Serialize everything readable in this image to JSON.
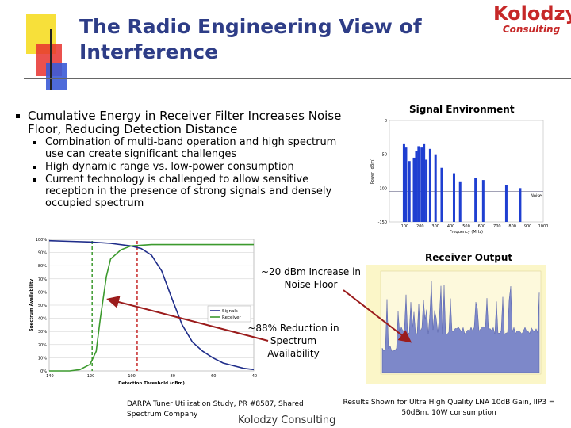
{
  "slide": {
    "title": "The Radio Engineering View of Interference",
    "logo": {
      "main": "Kolodzy",
      "sub": "Consulting"
    },
    "bullet": "Cumulative Energy in Receiver Filter Increases Noise Floor, Reducing Detection Distance",
    "sub_bullets": [
      "Combination of multi-band operation and high spectrum use  can create significant challenges",
      "High dynamic range vs. low-power consumption",
      "Current technology is challenged to allow sensitive reception in the presence of strong signals and densely occupied spectrum"
    ],
    "signal_env_title": "Signal Environment",
    "receiver_output_title": "Receiver Output",
    "annotation_noise": "~20 dBm Increase in Noise Floor",
    "annotation_reduction": "~88% Reduction in Spectrum Availability",
    "citation": "DARPA Tuner Utilization Study, PR #8587, Shared Spectrum Company",
    "footer": "Kolodzy Consulting",
    "results_note": "Results Shown for Ultra High Quality LNA 10dB Gain, IIP3 = 50dBm, 10W consumption"
  },
  "colors": {
    "title": "#2e3d87",
    "logo": "#c62828",
    "arrow": "#9b1c1c",
    "signal_bars": "#1f3fd1",
    "receiver_fill": "#7d88c9",
    "receiver_bg": "#fbf6c8"
  },
  "chart_data": [
    {
      "type": "line",
      "title": "",
      "xlabel": "Detection Threshold (dBm)",
      "ylabel": "Spectrum Availability",
      "x_ticks": [
        "-140",
        "-120",
        "-100",
        "-80",
        "-60",
        "-40"
      ],
      "y_ticks": [
        "0%",
        "10%",
        "20%",
        "30%",
        "40%",
        "50%",
        "60%",
        "70%",
        "80%",
        "90%",
        "100%"
      ],
      "xlim": [
        -140,
        -40
      ],
      "ylim": [
        0,
        100
      ],
      "legend": "right",
      "series": [
        {
          "name": "Signals",
          "color": "#1f2d8a",
          "x": [
            -140,
            -130,
            -120,
            -110,
            -100,
            -95,
            -90,
            -85,
            -80,
            -75,
            -70,
            -65,
            -60,
            -55,
            -50,
            -45,
            -40
          ],
          "y": [
            99,
            98.5,
            98,
            97,
            95,
            93,
            88,
            76,
            55,
            35,
            22,
            15,
            10,
            6,
            4,
            2,
            1
          ]
        },
        {
          "name": "Receiver",
          "color": "#3c9a2e",
          "x": [
            -140,
            -130,
            -125,
            -120,
            -117,
            -115,
            -112,
            -110,
            -105,
            -100,
            -90,
            -80,
            -70,
            -60,
            -50,
            -40
          ],
          "y": [
            0,
            0,
            1,
            5,
            15,
            40,
            72,
            85,
            92,
            95,
            96,
            96,
            96,
            96,
            96,
            96
          ]
        }
      ]
    },
    {
      "type": "bar",
      "title": "Signal Environment",
      "xlabel": "Frequency (MHz)",
      "ylabel": "Power (dBm)",
      "x_ticks": [
        "100",
        "200",
        "300",
        "400",
        "500",
        "600",
        "700",
        "800",
        "900",
        "1000"
      ],
      "y_ticks": [
        "0",
        "-50",
        "-100",
        "-150"
      ],
      "ylim": [
        -150,
        0
      ],
      "noise_label": "Noise",
      "noise_level": -105,
      "values": [
        {
          "f": 95,
          "p": -35
        },
        {
          "f": 108,
          "p": -40
        },
        {
          "f": 130,
          "p": -60
        },
        {
          "f": 160,
          "p": -55
        },
        {
          "f": 175,
          "p": -45
        },
        {
          "f": 190,
          "p": -38
        },
        {
          "f": 210,
          "p": -40
        },
        {
          "f": 225,
          "p": -35
        },
        {
          "f": 240,
          "p": -58
        },
        {
          "f": 265,
          "p": -42
        },
        {
          "f": 300,
          "p": -50
        },
        {
          "f": 340,
          "p": -70
        },
        {
          "f": 420,
          "p": -78
        },
        {
          "f": 460,
          "p": -90
        },
        {
          "f": 560,
          "p": -85
        },
        {
          "f": 610,
          "p": -88
        },
        {
          "f": 760,
          "p": -95
        },
        {
          "f": 850,
          "p": -100
        }
      ]
    }
  ]
}
